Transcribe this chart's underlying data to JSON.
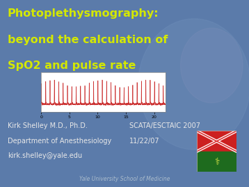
{
  "title_line1": "Photoplethysmography:",
  "title_line2": "beyond the calculation of",
  "title_line3": "SpO2 and pulse rate",
  "title_color": "#d4e800",
  "bg_color": "#5b7baa",
  "text_color": "#e8e8e8",
  "info_left": [
    "Kirk Shelley M.D., Ph.D.",
    "Department of Anesthesiology",
    "kirk.shelley@yale.edu"
  ],
  "info_right": [
    "SCATA/ESCTAIC 2007",
    "11/22/07"
  ],
  "footer": "Yale University School of Medicine",
  "plot_line_color": "#cc3333",
  "xticks": [
    0,
    5,
    10,
    15,
    20
  ],
  "xlim": [
    0,
    22
  ],
  "ylim": [
    -0.3,
    1.2
  ],
  "title_fontsize": 11.5,
  "info_fontsize": 7.0,
  "footer_fontsize": 5.5
}
